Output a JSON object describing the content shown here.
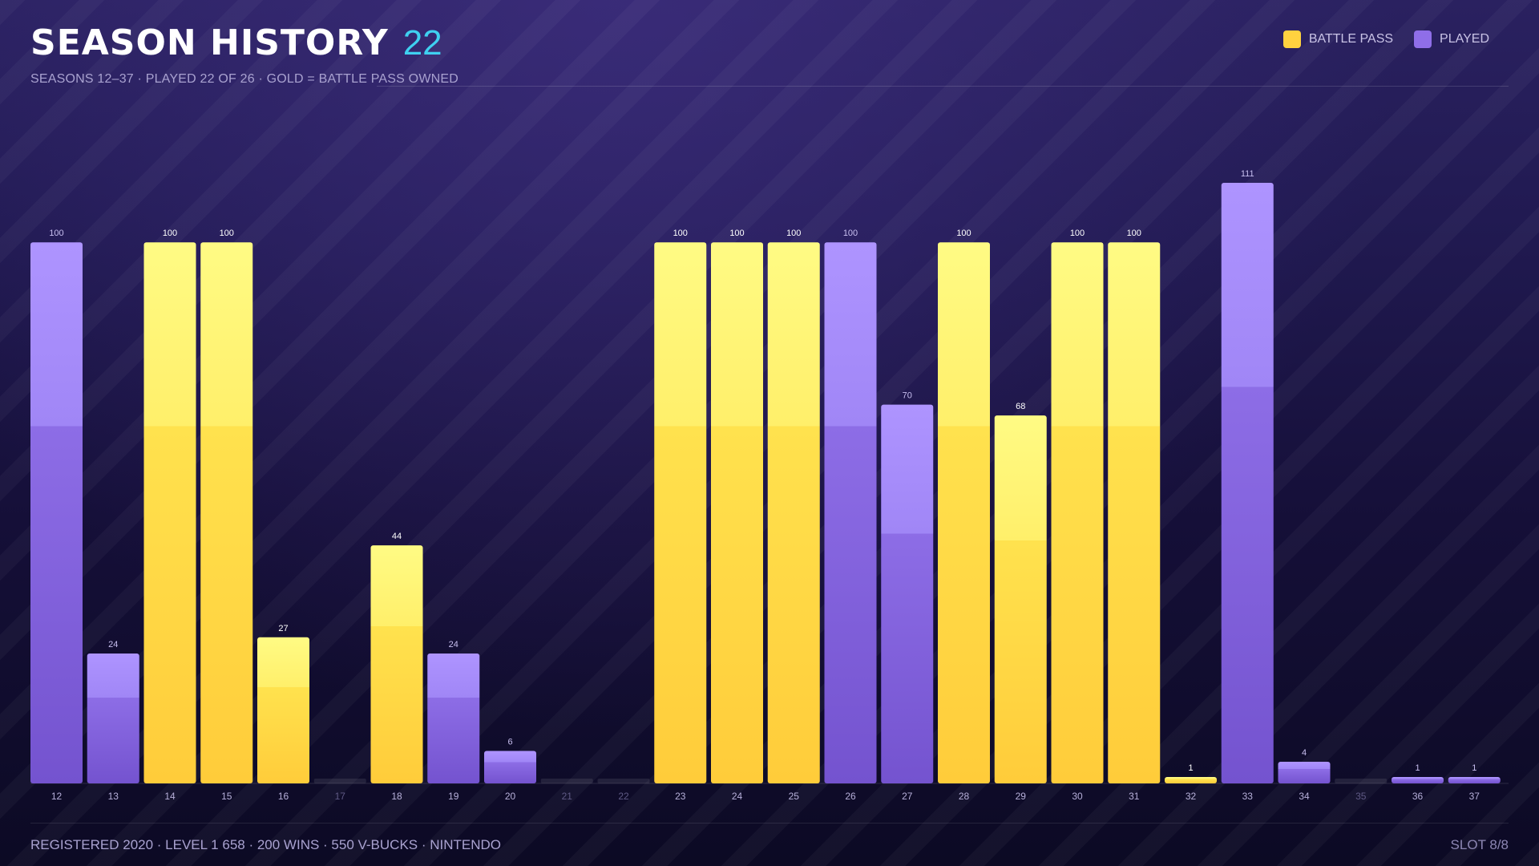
{
  "header": {
    "title": "SEASON HISTORY",
    "count": "22",
    "subtitle": "SEASONS 12–37  ·  PLAYED 22 OF 26  ·  GOLD = BATTLE PASS OWNED"
  },
  "legend": {
    "battle_pass_label": "BATTLE PASS",
    "played_label": "PLAYED"
  },
  "colors": {
    "battle_pass": "#ffd23f",
    "played": "#8f6ee8",
    "count_accent": "#3fd0f0"
  },
  "chart_data": {
    "type": "bar",
    "categories": [
      "12",
      "13",
      "14",
      "15",
      "16",
      "17",
      "18",
      "19",
      "20",
      "21",
      "22",
      "23",
      "24",
      "25",
      "26",
      "27",
      "28",
      "29",
      "30",
      "31",
      "32",
      "33",
      "34",
      "35",
      "36",
      "37"
    ],
    "values": [
      100,
      24,
      100,
      100,
      27,
      0,
      44,
      24,
      6,
      0,
      0,
      100,
      100,
      100,
      100,
      70,
      100,
      68,
      100,
      100,
      1,
      111,
      4,
      0,
      1,
      1
    ],
    "battle_pass": [
      false,
      false,
      true,
      true,
      true,
      false,
      true,
      false,
      false,
      false,
      false,
      true,
      true,
      true,
      false,
      false,
      true,
      true,
      true,
      true,
      true,
      false,
      false,
      false,
      false,
      false
    ],
    "played": [
      true,
      true,
      true,
      true,
      true,
      false,
      true,
      true,
      true,
      false,
      false,
      true,
      true,
      true,
      true,
      true,
      true,
      true,
      true,
      true,
      true,
      true,
      true,
      false,
      true,
      true
    ],
    "ylim": [
      0,
      111
    ],
    "grid": false,
    "legend_position": "top-right"
  },
  "footer": {
    "left": "REGISTERED 2020  ·  LEVEL 1 658  ·  200 WINS  ·  550 V-BUCKS  ·  NINTENDO",
    "right": "SLOT 8/8"
  }
}
